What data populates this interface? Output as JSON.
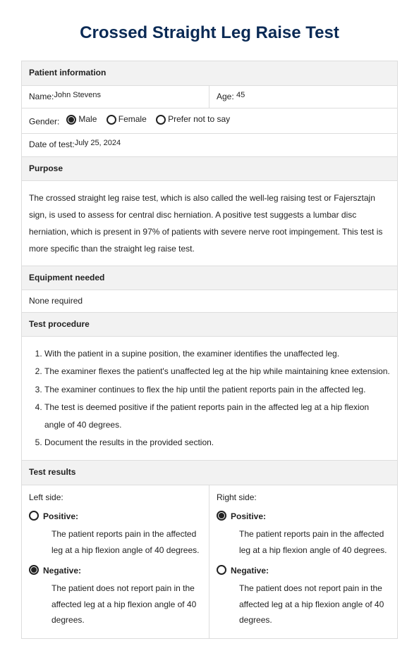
{
  "title": "Crossed Straight Leg Raise Test",
  "patient_info": {
    "header": "Patient information",
    "name_label": "Name:",
    "name_value": "John Stevens",
    "age_label": "Age:",
    "age_value": "45",
    "gender_label": "Gender:",
    "gender_options": {
      "male": "Male",
      "female": "Female",
      "prefer": "Prefer not to say"
    },
    "gender_selected": "male",
    "date_label": "Date of test:",
    "date_value": "July 25, 2024"
  },
  "purpose": {
    "header": "Purpose",
    "text": "The crossed straight leg raise test, which is also called the well-leg raising test or Fajersztajn sign, is used to assess for central disc herniation. A positive test suggests a lumbar disc herniation, which is present in 97% of patients with severe nerve root impingement. This test is more specific than the straight leg raise test."
  },
  "equipment": {
    "header": "Equipment needed",
    "text": "None required"
  },
  "procedure": {
    "header": "Test procedure",
    "steps": [
      "With the patient in a supine position, the examiner identifies the unaffected leg.",
      "The examiner flexes the patient's unaffected leg at the hip while maintaining knee extension.",
      "The examiner continues to flex the hip until the patient reports pain in the affected leg.",
      "The test is deemed positive if the patient reports pain in the affected leg at a hip flexion angle of 40 degrees.",
      "Document the results in the provided section."
    ]
  },
  "results": {
    "header": "Test results",
    "left_label": "Left side:",
    "right_label": "Right side:",
    "positive_label": "Positive:",
    "positive_desc": "The patient reports pain in the affected leg at a hip flexion angle of 40 degrees.",
    "negative_label": "Negative:",
    "negative_desc": "The patient does not report pain in the affected leg at a hip flexion angle of 40 degrees.",
    "left_selected": "negative",
    "right_selected": "positive"
  }
}
